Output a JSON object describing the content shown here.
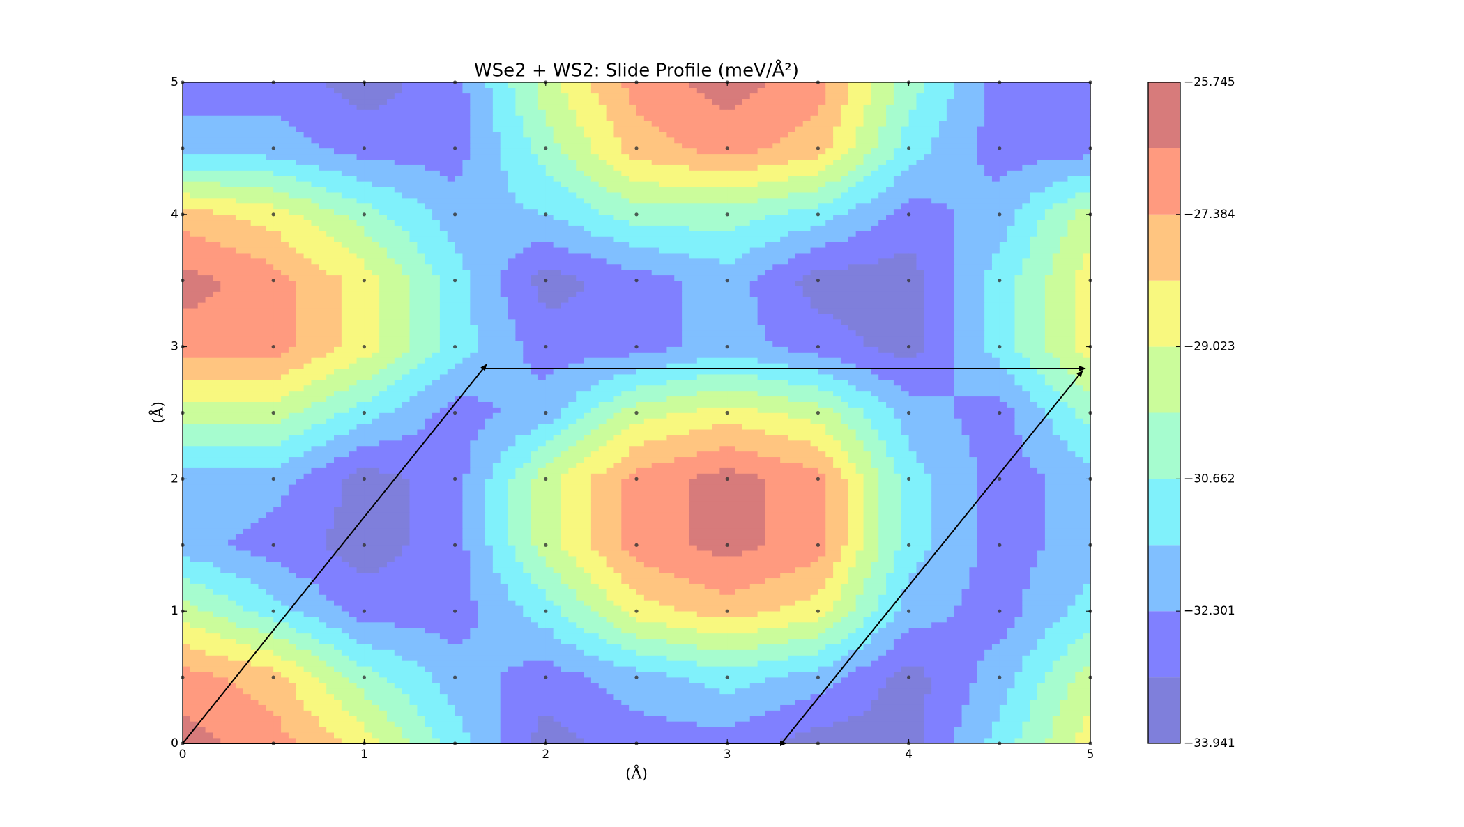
{
  "chart_data": {
    "type": "contourf",
    "title": "WSe2 + WS2: Slide Profile (meV/Å²)",
    "x_label": "(Å)",
    "y_label": "(Å)",
    "x": [
      0,
      0.5,
      1,
      1.5,
      2,
      2.5,
      3,
      3.5,
      4,
      4.5,
      5
    ],
    "y": [
      0,
      0.5,
      1,
      1.5,
      2,
      2.5,
      3,
      3.5,
      4,
      4.5,
      5
    ],
    "z": [
      [
        -26.2,
        -27.0,
        -28.6,
        -31.1,
        -33.5,
        -32.7,
        -32.7,
        -33.5,
        -33.5,
        -31.1,
        -28.6
      ],
      [
        -27.0,
        -27.8,
        -30.25,
        -31.9,
        -32.7,
        -31.9,
        -31.1,
        -31.9,
        -33.5,
        -31.9,
        -29.4
      ],
      [
        -29.4,
        -31.1,
        -32.7,
        -32.7,
        -31.1,
        -28.6,
        -27.8,
        -28.6,
        -31.9,
        -32.7,
        -31.1
      ],
      [
        -31.9,
        -32.7,
        -33.5,
        -32.7,
        -29.4,
        -27.0,
        -26.2,
        -27.0,
        -31.1,
        -32.7,
        -31.9
      ],
      [
        -31.9,
        -31.9,
        -33.5,
        -32.7,
        -29.4,
        -27.0,
        -26.2,
        -27.0,
        -31.1,
        -32.7,
        -31.9
      ],
      [
        -29.4,
        -29.4,
        -31.1,
        -32.7,
        -31.9,
        -29.4,
        -28.6,
        -29.4,
        -31.9,
        -32.7,
        -30.25
      ],
      [
        -27.0,
        -27.0,
        -28.6,
        -31.1,
        -32.7,
        -32.7,
        -31.9,
        -32.7,
        -33.5,
        -31.1,
        -28.6
      ],
      [
        -26.2,
        -27.0,
        -28.6,
        -31.1,
        -33.5,
        -32.7,
        -31.9,
        -33.5,
        -33.5,
        -31.1,
        -28.6
      ],
      [
        -27.8,
        -28.6,
        -30.25,
        -31.9,
        -31.5,
        -30.25,
        -30.25,
        -31.1,
        -32.7,
        -31.9,
        -29.4
      ],
      [
        -31.9,
        -31.9,
        -32.7,
        -32.7,
        -30.25,
        -27.8,
        -27.0,
        -27.8,
        -31.1,
        -32.7,
        -32.7
      ],
      [
        -32.7,
        -32.7,
        -33.5,
        -32.7,
        -29.4,
        -27.0,
        -26.2,
        -27.0,
        -30.25,
        -32.7,
        -32.7
      ]
    ],
    "levels": [
      -33.941,
      -33.1214,
      -32.3018,
      -31.4822,
      -30.6626,
      -29.843,
      -29.0234,
      -28.2038,
      -27.3842,
      -26.5646,
      -25.745
    ],
    "colors": [
      "#7f7fdb",
      "#8080ff",
      "#80bfff",
      "#80f1fb",
      "#a6fccf",
      "#cbfc9b",
      "#f8f87f",
      "#ffc580",
      "#ff9a7f",
      "#d77b7b"
    ],
    "xlim": [
      0,
      5
    ],
    "ylim": [
      0,
      5
    ],
    "xticks": [
      0,
      1,
      2,
      3,
      4,
      5
    ],
    "yticks": [
      0,
      1,
      2,
      3,
      4,
      5
    ],
    "colorbar_ticks": [
      {
        "value": -33.941,
        "label": "−33.941"
      },
      {
        "value": -32.301,
        "label": "−32.301"
      },
      {
        "value": -30.662,
        "label": "−30.662"
      },
      {
        "value": -29.023,
        "label": "−29.023"
      },
      {
        "value": -27.384,
        "label": "−27.384"
      },
      {
        "value": -25.745,
        "label": "−25.745"
      }
    ]
  }
}
